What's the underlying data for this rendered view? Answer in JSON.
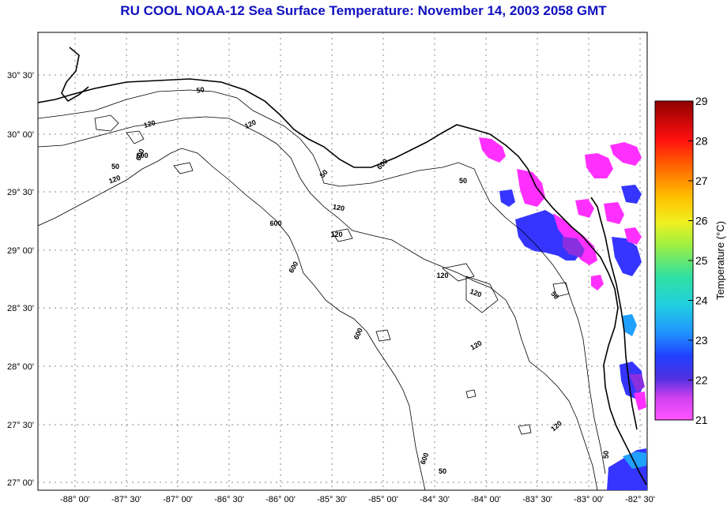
{
  "title": "RU COOL  NOAA-12  Sea Surface Temperature:  November 14, 2003 2058 GMT",
  "lon_labels": [
    "-88° 00'",
    "-87° 30'",
    "-87° 00'",
    "-86° 30'",
    "-86° 00'",
    "-85° 30'",
    "-85° 00'",
    "-84° 30'",
    "-84° 00'",
    "-83° 30'",
    "-83° 00'",
    "-82° 30'"
  ],
  "lat_labels": [
    "30° 30'",
    "30° 00'",
    "29° 30'",
    "29° 00'",
    "28° 30'",
    "28° 00'",
    "27° 30'",
    "27° 00'"
  ],
  "colorbar": {
    "title": "Temperature (°C)",
    "labels": [
      "29",
      "28",
      "27",
      "26",
      "25",
      "24",
      "23",
      "22",
      "21"
    ]
  },
  "contour_labels": [
    "50",
    "120",
    "50",
    "120",
    "600",
    "120",
    "50",
    "50",
    "120",
    "600",
    "120",
    "120",
    "600",
    "600",
    "120",
    "120",
    "50",
    "120",
    "600",
    "50",
    "600",
    "50",
    "600"
  ],
  "colors": {
    "title": "#1010c0",
    "grid": "#888888",
    "sst_magenta": "#ff30ff",
    "sst_purple": "#9030e0",
    "sst_blue": "#3030ff",
    "sst_cyan": "#20a0ff"
  }
}
